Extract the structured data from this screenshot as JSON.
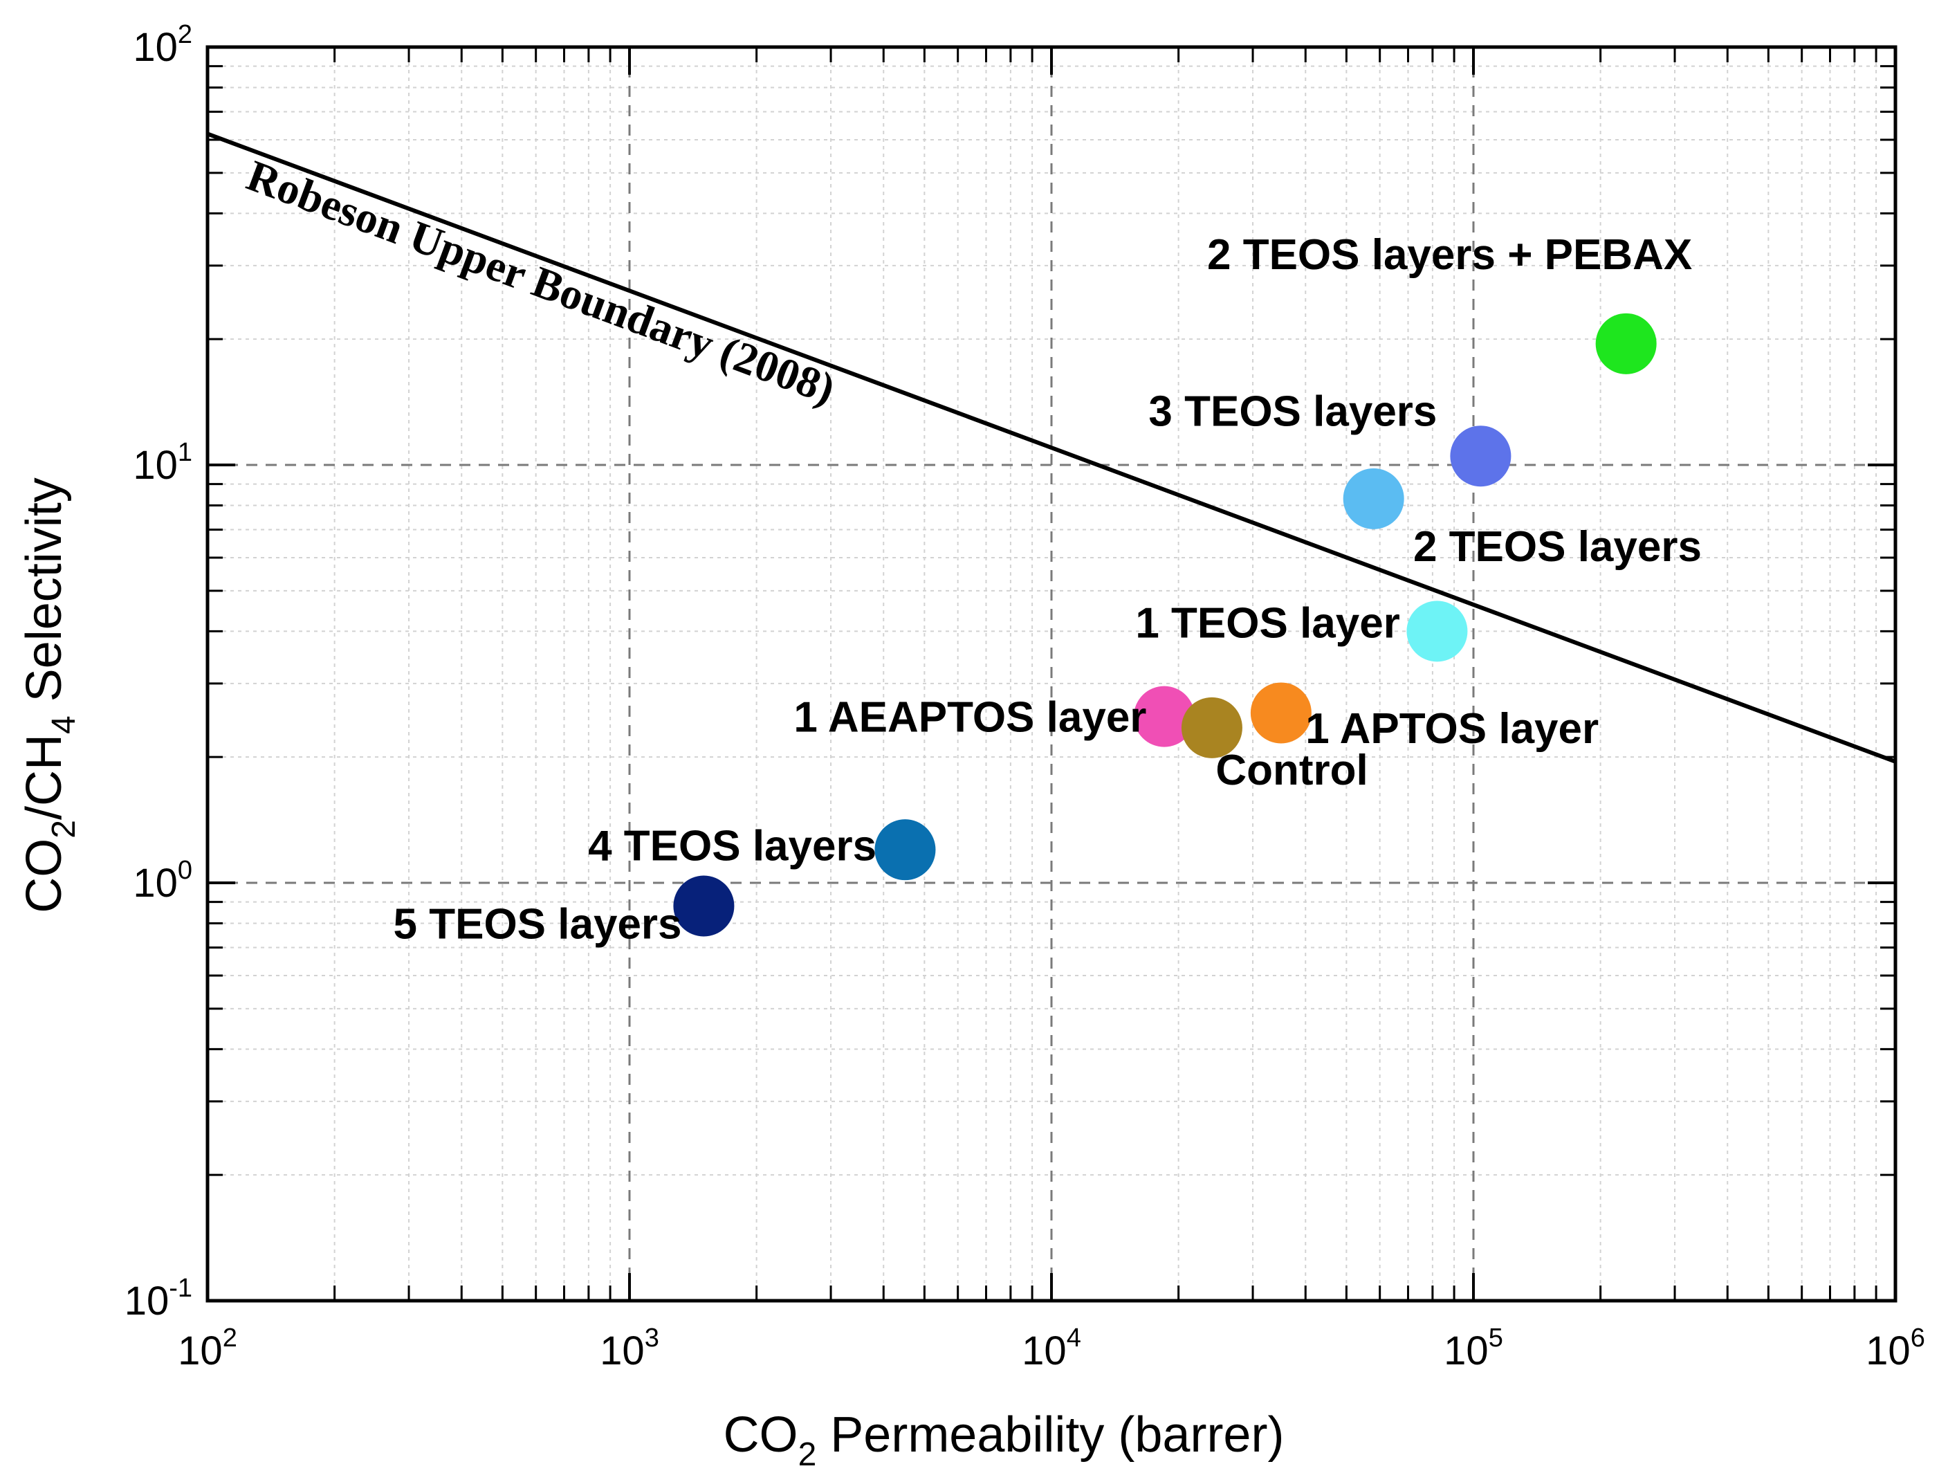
{
  "chart_data": {
    "type": "scatter",
    "xscale": "log",
    "yscale": "log",
    "xlim": [
      100,
      1000000
    ],
    "ylim": [
      0.1,
      100
    ],
    "xlabel": {
      "main": "CO",
      "sub": "2",
      "rest": " Permeability (barrer)"
    },
    "ylabel": {
      "p1": "CO",
      "s1": "2",
      "p2": "/CH",
      "s2": "4",
      "p3": " Selectivity"
    },
    "x_ticks": [
      {
        "value": 100,
        "base": "10",
        "exp": "2"
      },
      {
        "value": 1000,
        "base": "10",
        "exp": "3"
      },
      {
        "value": 10000,
        "base": "10",
        "exp": "4"
      },
      {
        "value": 100000,
        "base": "10",
        "exp": "5"
      },
      {
        "value": 1000000,
        "base": "10",
        "exp": "6"
      }
    ],
    "y_ticks": [
      {
        "value": 0.1,
        "base": "10",
        "exp": "-1"
      },
      {
        "value": 1,
        "base": "10",
        "exp": "0"
      },
      {
        "value": 10,
        "base": "10",
        "exp": "1"
      },
      {
        "value": 100,
        "base": "10",
        "exp": "2"
      }
    ],
    "upper_bound": {
      "name": "Robeson Upper Boundary (2008)",
      "x": [
        100,
        1000000
      ],
      "y": [
        62,
        1.95
      ]
    },
    "points": [
      {
        "name": "2 TEOS layers + PEBAX",
        "x": 230000,
        "y": 19.5,
        "color": "#1ee61e",
        "label_anchor": "end",
        "label_x": 330000,
        "label_y": 32
      },
      {
        "name": "3 TEOS layers",
        "x": 104000,
        "y": 10.5,
        "color": "#5d73ea",
        "label_anchor": "end",
        "label_x": 82000,
        "label_y": 13.5
      },
      {
        "name": "2 TEOS layers",
        "x": 58000,
        "y": 8.3,
        "color": "#5bbcf2",
        "label_anchor": "start",
        "label_x": 72000,
        "label_y": 6.4
      },
      {
        "name": "1 TEOS layer",
        "x": 82000,
        "y": 4.0,
        "color": "#6ef3f6",
        "label_anchor": "end",
        "label_x": 67000,
        "label_y": 4.2
      },
      {
        "name": "1 AEAPTOS layer",
        "x": 18500,
        "y": 2.5,
        "color": "#f04fb5",
        "label_anchor": "end",
        "label_x": 16800,
        "label_y": 2.5
      },
      {
        "name": "Control",
        "x": 24000,
        "y": 2.35,
        "color": "#a98421",
        "label_anchor": "start",
        "label_x": 24500,
        "label_y": 1.87
      },
      {
        "name": "1 APTOS layer",
        "x": 35000,
        "y": 2.55,
        "color": "#f78a1f",
        "label_anchor": "start",
        "label_x": 40000,
        "label_y": 2.35
      },
      {
        "name": "4 TEOS layers",
        "x": 4500,
        "y": 1.2,
        "color": "#0a70b0",
        "label_anchor": "end",
        "label_x": 3850,
        "label_y": 1.23
      },
      {
        "name": "5 TEOS layers",
        "x": 1500,
        "y": 0.88,
        "color": "#07217a",
        "label_anchor": "end",
        "label_x": 1330,
        "label_y": 0.8
      }
    ]
  }
}
